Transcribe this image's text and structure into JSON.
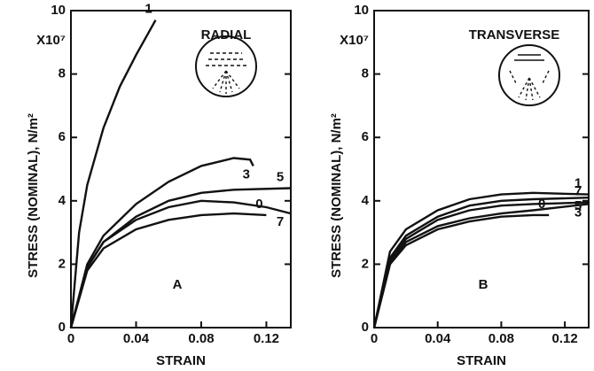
{
  "chart_data": [
    {
      "type": "line",
      "panel_label": "A",
      "orientation_label": "RADIAL",
      "x_label": "STRAIN",
      "y_label": "STRESS (NOMINAL), N/m²",
      "multiplier": "X10⁷",
      "xlim": [
        0,
        0.135
      ],
      "xticks": [
        0,
        0.04,
        0.08,
        0.12
      ],
      "ylim": [
        0,
        10
      ],
      "yticks": [
        0,
        2,
        4,
        6,
        8,
        10
      ],
      "color": "#111111",
      "series": [
        {
          "name": "1",
          "x": [
            0,
            0.005,
            0.01,
            0.02,
            0.03,
            0.04,
            0.052
          ],
          "values": [
            0,
            3,
            4.5,
            6.3,
            7.6,
            8.6,
            9.7
          ]
        },
        {
          "name": "3",
          "x": [
            0,
            0.01,
            0.02,
            0.04,
            0.06,
            0.08,
            0.1,
            0.11,
            0.112
          ],
          "values": [
            0,
            2,
            2.9,
            3.9,
            4.6,
            5.1,
            5.35,
            5.3,
            5.1
          ]
        },
        {
          "name": "5",
          "x": [
            0,
            0.01,
            0.02,
            0.04,
            0.06,
            0.08,
            0.1,
            0.135
          ],
          "values": [
            0,
            1.9,
            2.7,
            3.5,
            4,
            4.25,
            4.35,
            4.4
          ]
        },
        {
          "name": "7",
          "x": [
            0,
            0.01,
            0.02,
            0.04,
            0.06,
            0.08,
            0.1,
            0.12,
            0.135
          ],
          "values": [
            0,
            1.9,
            2.7,
            3.4,
            3.8,
            4,
            3.95,
            3.8,
            3.6
          ]
        },
        {
          "name": "0",
          "x": [
            0,
            0.01,
            0.02,
            0.04,
            0.06,
            0.08,
            0.1,
            0.12
          ],
          "values": [
            0,
            1.8,
            2.5,
            3.1,
            3.4,
            3.55,
            3.6,
            3.55
          ]
        }
      ]
    },
    {
      "type": "line",
      "panel_label": "B",
      "orientation_label": "TRANSVERSE",
      "x_label": "STRAIN",
      "y_label": "STRESS (NOMINAL), N/m²",
      "multiplier": "X10⁷",
      "xlim": [
        0,
        0.135
      ],
      "xticks": [
        0,
        0.04,
        0.08,
        0.12
      ],
      "ylim": [
        0,
        10
      ],
      "yticks": [
        0,
        2,
        4,
        6,
        8,
        10
      ],
      "color": "#111111",
      "series": [
        {
          "name": "1",
          "x": [
            0,
            0.01,
            0.02,
            0.04,
            0.06,
            0.08,
            0.1,
            0.135
          ],
          "values": [
            0,
            2.4,
            3.1,
            3.7,
            4.05,
            4.2,
            4.25,
            4.2
          ]
        },
        {
          "name": "5",
          "x": [
            0,
            0.01,
            0.02,
            0.04,
            0.06,
            0.08,
            0.1,
            0.135
          ],
          "values": [
            0,
            2.2,
            2.9,
            3.5,
            3.85,
            4,
            4.05,
            4.1
          ]
        },
        {
          "name": "7",
          "x": [
            0,
            0.01,
            0.02,
            0.04,
            0.06,
            0.08,
            0.1,
            0.135
          ],
          "values": [
            0,
            2.1,
            2.8,
            3.4,
            3.7,
            3.85,
            3.9,
            3.95
          ]
        },
        {
          "name": "3",
          "x": [
            0,
            0.01,
            0.02,
            0.04,
            0.06,
            0.08,
            0.1,
            0.135
          ],
          "values": [
            0,
            2,
            2.7,
            3.2,
            3.45,
            3.6,
            3.7,
            3.9
          ]
        },
        {
          "name": "0",
          "x": [
            0,
            0.01,
            0.02,
            0.04,
            0.06,
            0.08,
            0.1,
            0.11
          ],
          "values": [
            0,
            2,
            2.6,
            3.1,
            3.35,
            3.5,
            3.55,
            3.55
          ]
        }
      ]
    }
  ]
}
